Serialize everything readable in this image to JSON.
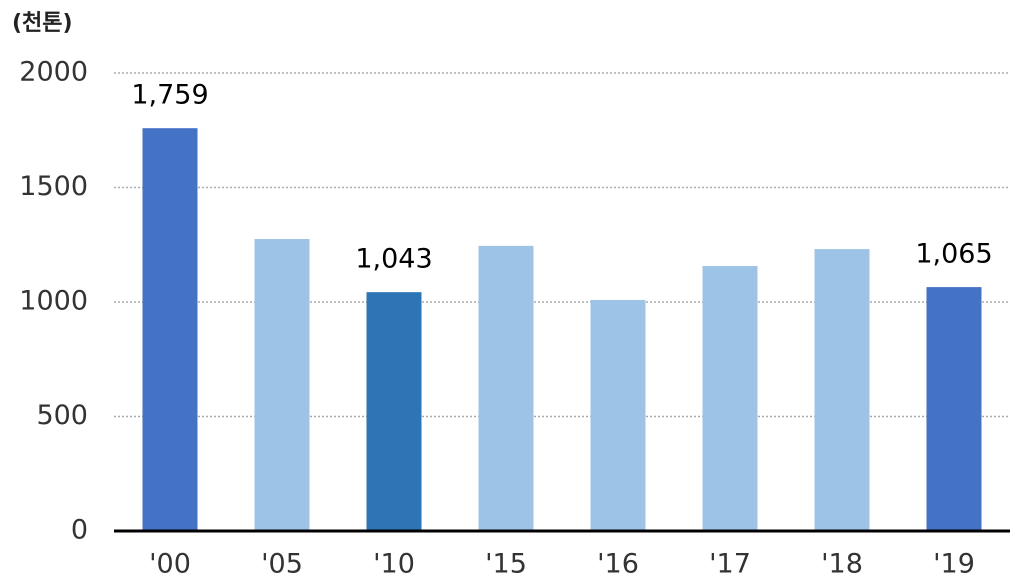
{
  "chart_data": {
    "type": "bar",
    "unit_label": "(천톤)",
    "categories": [
      "'00",
      "'05",
      "'10",
      "'15",
      "'16",
      "'17",
      "'18",
      "'19"
    ],
    "values": [
      1759,
      1275,
      1043,
      1245,
      1009,
      1157,
      1231,
      1065
    ],
    "value_labels": [
      "1,759",
      null,
      "1,043",
      null,
      null,
      null,
      null,
      "1,065"
    ],
    "colors": [
      "#4472c4",
      "#9dc3e6",
      "#2e75b6",
      "#9dc3e6",
      "#9dc3e6",
      "#9dc3e6",
      "#9dc3e6",
      "#4472c4"
    ],
    "ylim": [
      0,
      2000
    ],
    "yticks": [
      0,
      500,
      1000,
      1500,
      2000
    ],
    "grid": true
  }
}
